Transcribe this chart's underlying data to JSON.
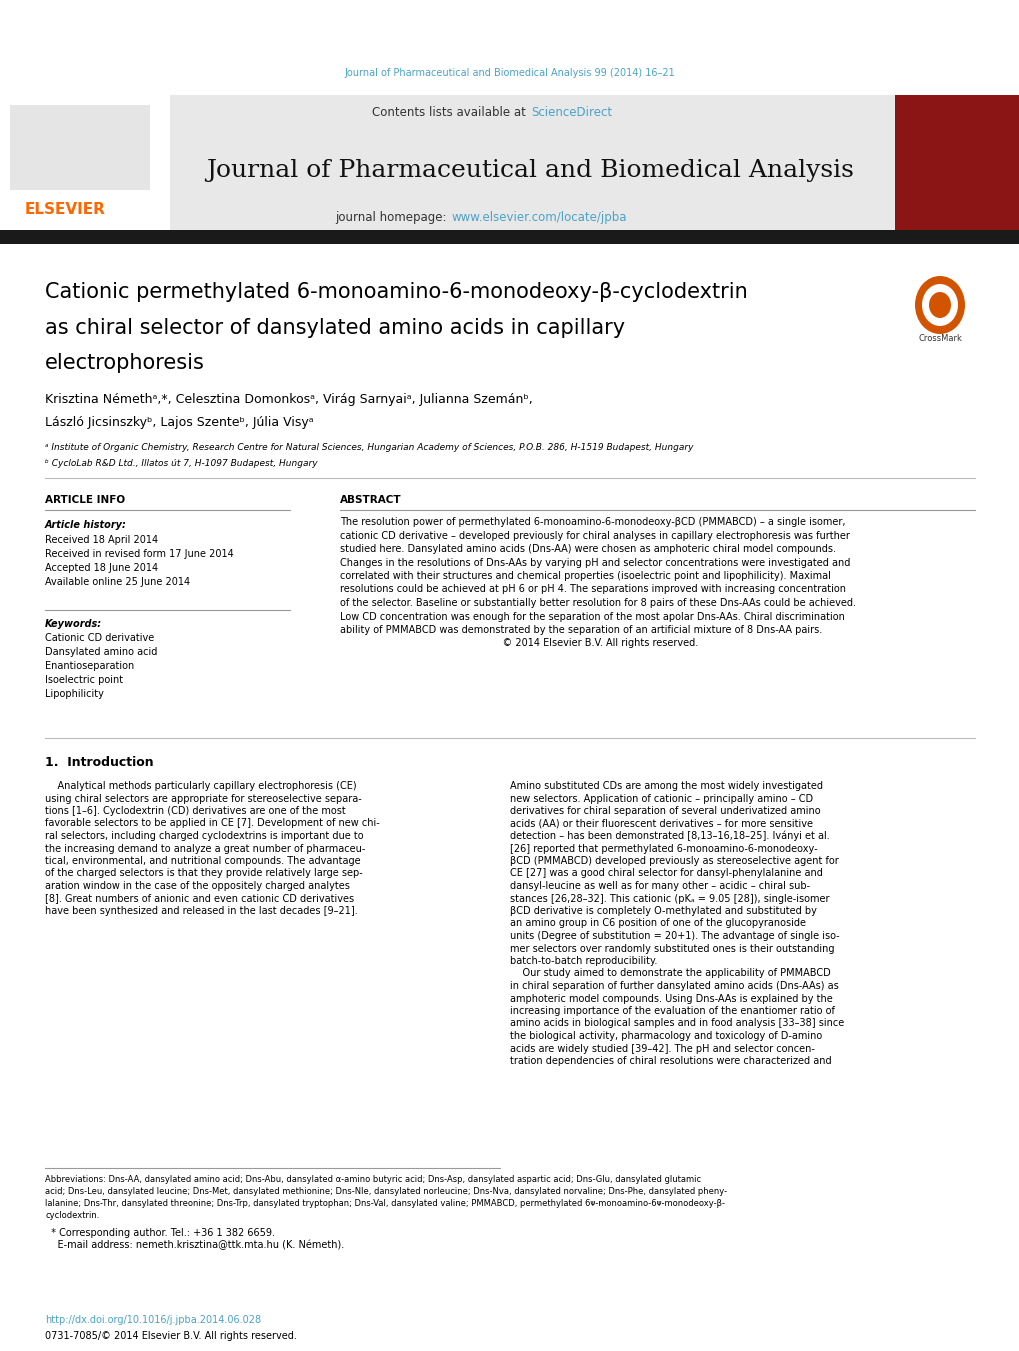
{
  "journal_ref": "Journal of Pharmaceutical and Biomedical Analysis 99 (2014) 16–21",
  "journal_title": "Journal of Pharmaceutical and Biomedical Analysis",
  "journal_homepage_label": "journal homepage: ",
  "journal_homepage_link": "www.elsevier.com/locate/jpba",
  "contents_available_label": "Contents lists available at ",
  "contents_available_link": "ScienceDirect",
  "paper_title_line1": "Cationic permethylated 6-monoamino-6-monodeoxy-β-cyclodextrin",
  "paper_title_line2": "as chiral selector of dansylated amino acids in capillary",
  "paper_title_line3": "electrophoresis",
  "authors_line1": "Krisztina Némethᵃ,*, Celesztina Domonkosᵃ, Virág Sarnyaiᵃ, Julianna Szemánᵇ,",
  "authors_line2": "László Jicsinszkyᵇ, Lajos Szenteᵇ, Júlia Visyᵃ",
  "affil_a": "ᵃ Institute of Organic Chemistry, Research Centre for Natural Sciences, Hungarian Academy of Sciences, P.O.B. 286, H-1519 Budapest, Hungary",
  "affil_b": "ᵇ CycloLab R&D Ltd., Illatos út 7, H-1097 Budapest, Hungary",
  "article_info_title": "ARTICLE INFO",
  "article_history_title": "Article history:",
  "received": "Received 18 April 2014",
  "received_revised": "Received in revised form 17 June 2014",
  "accepted": "Accepted 18 June 2014",
  "available": "Available online 25 June 2014",
  "keywords_title": "Keywords:",
  "kw1": "Cationic CD derivative",
  "kw2": "Dansylated amino acid",
  "kw3": "Enantioseparation",
  "kw4": "Isoelectric point",
  "kw5": "Lipophilicity",
  "abstract_title": "ABSTRACT",
  "abstract_lines": [
    "The resolution power of permethylated 6-monoamino-6-monodeoxy-βCD (PMMABCD) – a single isomer,",
    "cationic CD derivative – developed previously for chiral analyses in capillary electrophoresis was further",
    "studied here. Dansylated amino acids (Dns-AA) were chosen as amphoteric chiral model compounds.",
    "Changes in the resolutions of Dns-AAs by varying pH and selector concentrations were investigated and",
    "correlated with their structures and chemical properties (isoelectric point and lipophilicity). Maximal",
    "resolutions could be achieved at pH 6 or pH 4. The separations improved with increasing concentration",
    "of the selector. Baseline or substantially better resolution for 8 pairs of these Dns-AAs could be achieved.",
    "Low CD concentration was enough for the separation of the most apolar Dns-AAs. Chiral discrimination",
    "ability of PMMABCD was demonstrated by the separation of an artificial mixture of 8 Dns-AA pairs.",
    "                                                    © 2014 Elsevier B.V. All rights reserved."
  ],
  "section1_title": "1.  Introduction",
  "intro_left_lines": [
    "    Analytical methods particularly capillary electrophoresis (CE)",
    "using chiral selectors are appropriate for stereoselective separa-",
    "tions [1–6]. Cyclodextrin (CD) derivatives are one of the most",
    "favorable selectors to be applied in CE [7]. Development of new chi-",
    "ral selectors, including charged cyclodextrins is important due to",
    "the increasing demand to analyze a great number of pharmaceu-",
    "tical, environmental, and nutritional compounds. The advantage",
    "of the charged selectors is that they provide relatively large sep-",
    "aration window in the case of the oppositely charged analytes",
    "[8]. Great numbers of anionic and even cationic CD derivatives",
    "have been synthesized and released in the last decades [9–21]."
  ],
  "intro_right_lines": [
    "Amino substituted CDs are among the most widely investigated",
    "new selectors. Application of cationic – principally amino – CD",
    "derivatives for chiral separation of several underivatized amino",
    "acids (AA) or their fluorescent derivatives – for more sensitive",
    "detection – has been demonstrated [8,13–16,18–25]. Iványi et al.",
    "[26] reported that permethylated 6-monoamino-6-monodeoxy-",
    "βCD (PMMABCD) developed previously as stereoselective agent for",
    "CE [27] was a good chiral selector for dansyl-phenylalanine and",
    "dansyl-leucine as well as for many other – acidic – chiral sub-",
    "stances [26,28–32]. This cationic (pKₐ = 9.05 [28]), single-isomer",
    "βCD derivative is completely O-methylated and substituted by",
    "an amino group in C6 position of one of the glucopyranoside",
    "units (Degree of substitution = 20+1). The advantage of single iso-",
    "mer selectors over randomly substituted ones is their outstanding",
    "batch-to-batch reproducibility.",
    "    Our study aimed to demonstrate the applicability of PMMABCD",
    "in chiral separation of further dansylated amino acids (Dns-AAs) as",
    "amphoteric model compounds. Using Dns-AAs is explained by the",
    "increasing importance of the evaluation of the enantiomer ratio of",
    "amino acids in biological samples and in food analysis [33–38] since",
    "the biological activity, pharmacology and toxicology of D-amino",
    "acids are widely studied [39–42]. The pH and selector concen-",
    "tration dependencies of chiral resolutions were characterized and"
  ],
  "footnote_line1": "Abbreviations: Dns-AA, dansylated amino acid; Dns-Abu, dansylated α-amino butyric acid; Dns-Asp, dansylated aspartic acid; Dns-Glu, dansylated glutamic",
  "footnote_line2": "acid; Dns-Leu, dansylated leucine; Dns-Met, dansylated methionine; Dns-Nle, dansylated norleucine; Dns-Nva, dansylated norvaline; Dns-Phe, dansylated pheny-",
  "footnote_line3": "lalanine; Dns-Thr, dansylated threonine; Dns-Trp, dansylated tryptophan; Dns-Val, dansylated valine; PMMABCD, permethylated 6ᴪ-monoamino-6ᴪ-monodeoxy-β-",
  "footnote_line4": "cyclodextrin.",
  "corresp": "  * Corresponding author. Tel.: +36 1 382 6659.",
  "email": "    E-mail address: nemeth.krisztina@ttk.mta.hu (K. Németh).",
  "doi1": "http://dx.doi.org/10.1016/j.jpba.2014.06.028",
  "doi2": "0731-7085/© 2014 Elsevier B.V. All rights reserved.",
  "bg_color": "#ffffff",
  "header_gray": "#e8e8e8",
  "dark_bar": "#1a1a1a",
  "cyan": "#4BA3C7",
  "orange": "#FF6600",
  "red_cover": "#8B1515",
  "black": "#000000",
  "gray_line": "#999999"
}
